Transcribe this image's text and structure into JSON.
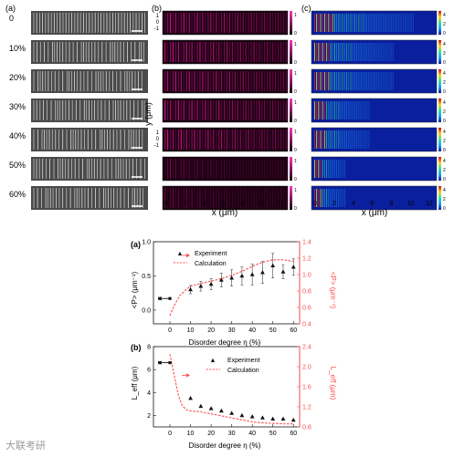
{
  "chart_data": [
    {
      "type": "image-grid",
      "panel_letter": "(a)",
      "row_labels": [
        "0",
        "10%",
        "20%",
        "30%",
        "40%",
        "50%",
        "60%"
      ]
    },
    {
      "type": "heatmap",
      "panel_letter": "(b)",
      "xlabel": "x (μm)",
      "ylabel": "y (μm)",
      "x_ticks": [
        "0",
        "2",
        "4",
        "6",
        "8",
        "10",
        "12"
      ],
      "y_ticks": [
        "1",
        "0",
        "-1"
      ],
      "colorbar_ticks": [
        "1",
        "0"
      ],
      "colors": {
        "high": "#e0189a",
        "low": "#14000e"
      }
    },
    {
      "type": "heatmap",
      "panel_letter": "(c)",
      "xlabel": "x (μm)",
      "x_ticks": [
        "0",
        "2",
        "4",
        "6",
        "8",
        "10",
        "12"
      ],
      "colorbar_ticks": [
        "4",
        "2",
        "0"
      ],
      "colors": {
        "low": "#0a1f9e",
        "high": "#d02010"
      }
    },
    {
      "type": "line",
      "panel_letter": "(a)",
      "xlabel": "Disorder degree η (%)",
      "ylabel_left": "<P> (μm⁻¹)",
      "ylabel_right": "<P> (μm⁻¹)",
      "xlim": [
        -8,
        63
      ],
      "ylim_left": [
        -0.2,
        1.0
      ],
      "ylim_right": [
        0.4,
        1.4
      ],
      "x_ticks": [
        "0",
        "10",
        "20",
        "30",
        "40",
        "50",
        "60"
      ],
      "y_ticks_left": [
        "0.0",
        "0.5",
        "1.0"
      ],
      "y_ticks_right": [
        "0.4",
        "0.6",
        "0.8",
        "1.0",
        "1.2",
        "1.4"
      ],
      "legend": [
        "Experiment",
        "Calculation"
      ],
      "colors": {
        "experiment": "#111111",
        "calculation": "#ff4d4d"
      },
      "series": [
        {
          "name": "Experiment",
          "x": [
            -5,
            0,
            10,
            15,
            20,
            25,
            30,
            35,
            40,
            45,
            50,
            55,
            60
          ],
          "y": [
            0.17,
            0.17,
            0.3,
            0.35,
            0.38,
            0.44,
            0.47,
            0.5,
            0.52,
            0.55,
            0.65,
            0.56,
            0.63
          ],
          "err": [
            0,
            0,
            0.06,
            0.07,
            0.08,
            0.1,
            0.12,
            0.13,
            0.15,
            0.16,
            0.18,
            0.1,
            0.12
          ]
        },
        {
          "name": "Calculation",
          "axis": "right",
          "x": [
            0,
            2,
            5,
            8,
            10,
            15,
            20,
            25,
            30,
            35,
            40,
            45,
            50,
            55,
            60
          ],
          "y": [
            0.5,
            0.62,
            0.75,
            0.82,
            0.86,
            0.89,
            0.92,
            0.95,
            0.99,
            1.04,
            1.1,
            1.15,
            1.18,
            1.18,
            1.16
          ]
        }
      ],
      "arrows": [
        {
          "x": -5,
          "y": 0.17,
          "direction": "left"
        },
        {
          "x": 8,
          "y": 0.8,
          "direction": "right"
        }
      ]
    },
    {
      "type": "line",
      "panel_letter": "(b)",
      "xlabel": "Disorder degree η (%)",
      "ylabel_left": "L_eff (μm)",
      "ylabel_right": "L_eff (μm)",
      "xlim": [
        -8,
        63
      ],
      "ylim_left": [
        1,
        8
      ],
      "ylim_right": [
        0.8,
        2.4
      ],
      "x_ticks": [
        "0",
        "10",
        "20",
        "30",
        "40",
        "50",
        "60"
      ],
      "y_ticks_left": [
        "2",
        "4",
        "6",
        "8"
      ],
      "y_ticks_right": [
        "0.8",
        "1.2",
        "1.6",
        "2.0",
        "2.4"
      ],
      "legend": [
        "Experiment",
        "Calculation"
      ],
      "colors": {
        "experiment": "#111111",
        "calculation": "#ff4d4d"
      },
      "series": [
        {
          "name": "Experiment",
          "x": [
            -5,
            0,
            10,
            15,
            20,
            25,
            30,
            35,
            40,
            45,
            50,
            55,
            60
          ],
          "y": [
            6.6,
            6.6,
            3.5,
            2.8,
            2.6,
            2.4,
            2.2,
            2.0,
            1.9,
            1.8,
            1.7,
            1.7,
            1.6
          ]
        },
        {
          "name": "Calculation",
          "axis": "right",
          "x": [
            0,
            2,
            4,
            6,
            8,
            10,
            15,
            20,
            25,
            30,
            35,
            40,
            45,
            50,
            55,
            60
          ],
          "y": [
            2.25,
            1.85,
            1.45,
            1.22,
            1.14,
            1.12,
            1.1,
            1.06,
            1.02,
            0.98,
            0.94,
            0.9,
            0.88,
            0.87,
            0.86,
            0.86
          ]
        }
      ],
      "arrows": [
        {
          "x": -5,
          "y": 6.6,
          "direction": "left"
        },
        {
          "x": 8,
          "y": 5.5,
          "direction": "right"
        }
      ]
    }
  ],
  "watermark": "大联考研"
}
